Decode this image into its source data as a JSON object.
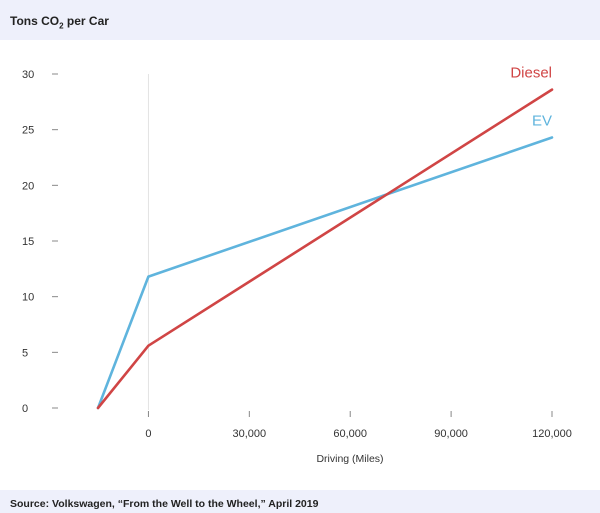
{
  "chart_data": {
    "type": "line",
    "title": "",
    "ylabel": "Tons CO",
    "ylabel_subscript": "2",
    "ylabel_suffix": " per Car",
    "xlabel": "Driving (Miles)",
    "source": "Source: Volkswagen, “From the Well to the Wheel,” April 2019",
    "x_ticks": [
      {
        "value": 0,
        "label": "0"
      },
      {
        "value": 30000,
        "label": "30,000"
      },
      {
        "value": 60000,
        "label": "60,000"
      },
      {
        "value": 90000,
        "label": "90,000"
      },
      {
        "value": 120000,
        "label": "120,000"
      }
    ],
    "y_ticks": [
      {
        "value": 0,
        "label": "0"
      },
      {
        "value": 5,
        "label": "5"
      },
      {
        "value": 10,
        "label": "10"
      },
      {
        "value": 15,
        "label": "15"
      },
      {
        "value": 20,
        "label": "20"
      },
      {
        "value": 25,
        "label": "25"
      },
      {
        "value": 30,
        "label": "30"
      }
    ],
    "xlim": [
      -15000,
      120000
    ],
    "ylim": [
      0,
      30
    ],
    "grid": false,
    "series": [
      {
        "name": "Diesel",
        "color": "#d04545",
        "points": [
          [
            -15000,
            0
          ],
          [
            0,
            5.6
          ],
          [
            120000,
            28.6
          ]
        ]
      },
      {
        "name": "EV",
        "color": "#5fb4dd",
        "points": [
          [
            -15000,
            0
          ],
          [
            0,
            11.8
          ],
          [
            120000,
            24.3
          ]
        ]
      }
    ]
  }
}
